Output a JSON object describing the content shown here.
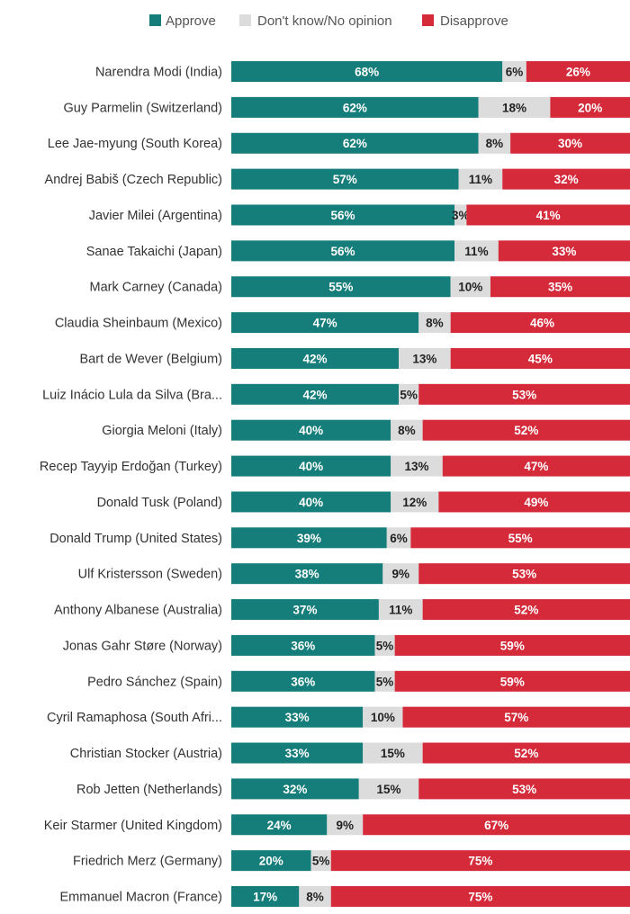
{
  "chart_data": {
    "type": "bar",
    "orientation": "horizontal",
    "stacked": true,
    "title": "",
    "xlabel": "",
    "ylabel": "",
    "xlim": [
      0,
      100
    ],
    "legend_position": "top",
    "unit_suffix": "%",
    "colors": {
      "Approve": "#157d7a",
      "Don't know/No opinion": "#dcdcdc",
      "Disapprove": "#d42a3a"
    },
    "categories": [
      "Narendra Modi (India)",
      "Guy Parmelin (Switzerland)",
      "Lee Jae-myung (South Korea)",
      "Andrej Babiš (Czech Republic)",
      "Javier Milei (Argentina)",
      "Sanae Takaichi (Japan)",
      "Mark Carney (Canada)",
      "Claudia Sheinbaum (Mexico)",
      "Bart de Wever (Belgium)",
      "Luiz Inácio Lula da Silva (Bra...",
      "Giorgia Meloni (Italy)",
      "Recep Tayyip Erdoğan (Turkey)",
      "Donald Tusk (Poland)",
      "Donald Trump (United States)",
      "Ulf Kristersson (Sweden)",
      "Anthony Albanese (Australia)",
      "Jonas Gahr Støre (Norway)",
      "Pedro Sánchez (Spain)",
      "Cyril Ramaphosa (South Afri...",
      "Christian Stocker (Austria)",
      "Rob Jetten (Netherlands)",
      "Keir Starmer (United Kingdom)",
      "Friedrich Merz (Germany)",
      "Emmanuel Macron (France)"
    ],
    "series": [
      {
        "name": "Approve",
        "values": [
          68,
          62,
          62,
          57,
          56,
          56,
          55,
          47,
          42,
          42,
          40,
          40,
          40,
          39,
          38,
          37,
          36,
          36,
          33,
          33,
          32,
          24,
          20,
          17
        ]
      },
      {
        "name": "Don't know/No opinion",
        "values": [
          6,
          18,
          8,
          11,
          3,
          11,
          10,
          8,
          13,
          5,
          8,
          13,
          12,
          6,
          9,
          11,
          5,
          5,
          10,
          15,
          15,
          9,
          5,
          8
        ]
      },
      {
        "name": "Disapprove",
        "values": [
          26,
          20,
          30,
          32,
          41,
          33,
          35,
          46,
          45,
          53,
          52,
          47,
          49,
          55,
          53,
          52,
          59,
          59,
          57,
          52,
          53,
          67,
          75,
          75
        ]
      }
    ]
  }
}
